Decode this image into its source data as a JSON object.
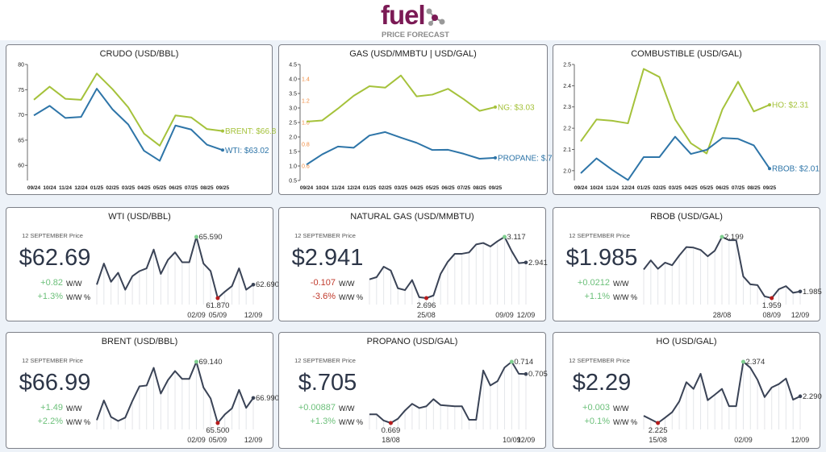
{
  "header": {
    "logo_text": "fuel",
    "subtitle": "PRICE FORECAST"
  },
  "colors": {
    "green": "#a5c23b",
    "blue": "#2e75a8",
    "orange": "#f08a3c",
    "spark": "#3a4356",
    "max_dot": "#7fcf8f",
    "min_dot": "#b71c1c",
    "positive": "#6cc07a",
    "negative": "#c0392b"
  },
  "chart_data": [
    {
      "type": "line",
      "title": "CRUDO (USD/BBL)",
      "grid": false,
      "categories": [
        "09/24",
        "10/24",
        "11/24",
        "12/24",
        "01/25",
        "02/25",
        "03/25",
        "04/25",
        "05/25",
        "06/25",
        "07/25",
        "08/25",
        "09/25"
      ],
      "ylim": [
        57,
        80
      ],
      "y_ticks": [
        60,
        65,
        70,
        75,
        80
      ],
      "tick_decimals": 0,
      "series": [
        {
          "name": "BRENT",
          "end_label": "BRENT: $66.8",
          "color": "#a5c23b",
          "values": [
            73.0,
            75.6,
            73.2,
            73.0,
            78.2,
            75.1,
            71.5,
            66.3,
            63.9,
            69.9,
            69.5,
            67.2,
            66.8
          ]
        },
        {
          "name": "WTI",
          "end_label": "WTI: $63.02",
          "color": "#2e75a8",
          "values": [
            69.9,
            71.8,
            69.4,
            69.6,
            75.2,
            71.1,
            68.1,
            62.9,
            60.9,
            67.9,
            67.1,
            64.1,
            63.02
          ]
        }
      ]
    },
    {
      "type": "line",
      "title": "GAS (USD/MMBTU | USD/GAL)",
      "grid": false,
      "categories": [
        "09/24",
        "10/24",
        "11/24",
        "12/24",
        "01/25",
        "02/25",
        "03/25",
        "04/25",
        "05/25",
        "06/25",
        "07/25",
        "08/25",
        "09/25"
      ],
      "ylim": [
        0.5,
        4.5
      ],
      "y_ticks": [
        0.5,
        1.0,
        1.5,
        2.0,
        2.5,
        3.0,
        3.5,
        4.0,
        4.5
      ],
      "tick_decimals": 1,
      "secondary_axis": {
        "ylim": [
          0.467,
          1.533
        ],
        "ticks": [
          0.6,
          0.8,
          1.0,
          1.2,
          1.4
        ],
        "color": "#f08a3c"
      },
      "series": [
        {
          "name": "NG",
          "end_label": "NG: $3.03",
          "color": "#a5c23b",
          "axis": "primary",
          "values": [
            2.53,
            2.57,
            2.98,
            3.42,
            3.75,
            3.7,
            4.12,
            3.4,
            3.46,
            3.66,
            3.3,
            2.9,
            3.03
          ]
        },
        {
          "name": "PROPANE",
          "end_label": "PROPANE: $.7",
          "color": "#2e75a8",
          "axis": "secondary",
          "values": [
            0.613,
            0.707,
            0.779,
            0.768,
            0.88,
            0.912,
            0.861,
            0.813,
            0.747,
            0.749,
            0.712,
            0.667,
            0.675
          ]
        }
      ]
    },
    {
      "type": "line",
      "title": "COMBUSTIBLE (USD/GAL)",
      "grid": false,
      "categories": [
        "09/24",
        "10/24",
        "11/24",
        "12/24",
        "01/25",
        "02/25",
        "03/25",
        "04/25",
        "05/25",
        "06/25",
        "07/25",
        "08/25",
        "09/25"
      ],
      "ylim": [
        1.954,
        2.5
      ],
      "y_ticks": [
        2.0,
        2.1,
        2.2,
        2.3,
        2.4,
        2.5
      ],
      "tick_decimals": 1,
      "series": [
        {
          "name": "HO",
          "end_label": "HO: $2.31",
          "color": "#a5c23b",
          "values": [
            2.138,
            2.241,
            2.235,
            2.223,
            2.479,
            2.441,
            2.241,
            2.129,
            2.081,
            2.288,
            2.419,
            2.279,
            2.31
          ]
        },
        {
          "name": "RBOB",
          "end_label": "RBOB: $2.01",
          "color": "#2e75a8",
          "values": [
            1.988,
            2.058,
            2.004,
            1.956,
            2.064,
            2.064,
            2.16,
            2.079,
            2.098,
            2.154,
            2.15,
            2.119,
            2.01
          ]
        }
      ]
    },
    {
      "type": "line",
      "title": "WTI (USD/BBL)",
      "price_label": "12 SEPTEMBER Price",
      "price": "$62.69",
      "change": "+0.82",
      "change_label": "W/W",
      "change_pct": "+1.3%",
      "change_pct_label": "W/W %",
      "trend": "up",
      "values": [
        62.69,
        63.97,
        62.86,
        63.41,
        62.38,
        63.2,
        63.51,
        63.68,
        64.82,
        63.34,
        64.19,
        64.65,
        64.05,
        64.05,
        65.59,
        63.97,
        63.51,
        61.87,
        62.26,
        62.6,
        63.68,
        62.38,
        62.69
      ],
      "x_labels": [
        {
          "index": 14,
          "label": "02/09"
        },
        {
          "index": 17,
          "label": "05/09"
        },
        {
          "index": 22,
          "label": "12/09"
        }
      ],
      "max_label": "65.590",
      "min_label": "61.870",
      "last_label": "62.690"
    },
    {
      "type": "line",
      "title": "NATURAL GAS (USD/MMBTU)",
      "price_label": "12 SEPTEMBER Price",
      "price": "$2.941",
      "change": "-0.107",
      "change_label": "W/W",
      "change_pct": "-3.6%",
      "change_pct_label": "W/W %",
      "trend": "down",
      "values": [
        2.825,
        2.84,
        2.912,
        2.886,
        2.764,
        2.751,
        2.82,
        2.702,
        2.696,
        2.714,
        2.862,
        2.945,
        3.001,
        3.001,
        3.01,
        3.065,
        3.075,
        3.051,
        3.087,
        3.117,
        3.019,
        2.936,
        2.941
      ],
      "x_labels": [
        {
          "index": 8,
          "label": "25/08"
        },
        {
          "index": 19,
          "label": "09/09"
        },
        {
          "index": 22,
          "label": "12/09"
        }
      ],
      "max_label": "3.117",
      "min_label": "2.696",
      "last_label": "2.941"
    },
    {
      "type": "line",
      "title": "RBOB (USD/GAL)",
      "price_label": "12 SEPTEMBER Price",
      "price": "$1.985",
      "change": "+0.0212",
      "change_label": "W/W",
      "change_pct": "+1.1%",
      "change_pct_label": "W/W %",
      "trend": "up",
      "values": [
        2.071,
        2.107,
        2.074,
        2.098,
        2.088,
        2.126,
        2.159,
        2.157,
        2.148,
        2.123,
        2.145,
        2.199,
        2.186,
        2.186,
        2.044,
        2.013,
        2.01,
        1.966,
        1.959,
        1.994,
        2.006,
        1.98,
        1.985
      ],
      "x_labels": [
        {
          "index": 11,
          "label": "28/08"
        },
        {
          "index": 18,
          "label": "08/09"
        },
        {
          "index": 22,
          "label": "12/09"
        }
      ],
      "max_label": "2.199",
      "min_label": "1.959",
      "last_label": "1.985"
    },
    {
      "type": "line",
      "title": "BRENT (USD/BBL)",
      "price_label": "12 SEPTEMBER Price",
      "price": "$66.99",
      "change": "+1.49",
      "change_label": "W/W",
      "change_pct": "+2.2%",
      "change_pct_label": "W/W %",
      "trend": "up",
      "values": [
        65.67,
        66.84,
        65.86,
        65.62,
        65.82,
        66.81,
        67.68,
        67.73,
        68.78,
        67.25,
        68.05,
        68.59,
        68.12,
        68.12,
        69.14,
        67.61,
        66.96,
        65.5,
        66.01,
        66.37,
        67.47,
        66.4,
        66.99
      ],
      "x_labels": [
        {
          "index": 14,
          "label": "02/09"
        },
        {
          "index": 17,
          "label": "05/09"
        },
        {
          "index": 22,
          "label": "12/09"
        }
      ],
      "max_label": "69.140",
      "min_label": "65.500",
      "last_label": "66.990"
    },
    {
      "type": "line",
      "title": "PROPANO (USD/GAL)",
      "price_label": "12 SEPTEMBER Price",
      "price": "$.705",
      "change": "+0.00887",
      "change_label": "W/W",
      "change_pct": "+1.3%",
      "change_pct_label": "W/W %",
      "trend": "up",
      "values": [
        0.6754,
        0.6754,
        0.6708,
        0.669,
        0.6721,
        0.6782,
        0.6831,
        0.68,
        0.6813,
        0.6865,
        0.6822,
        0.6817,
        0.6813,
        0.6813,
        0.6714,
        0.6714,
        0.7076,
        0.6966,
        0.6997,
        0.7098,
        0.714,
        0.7052,
        0.705
      ],
      "x_labels": [
        {
          "index": 3,
          "label": "18/08"
        },
        {
          "index": 20,
          "label": "10/09"
        },
        {
          "index": 22,
          "label": "12/09"
        }
      ],
      "max_label": "0.714",
      "min_label": "0.669",
      "last_label": "0.705"
    },
    {
      "type": "line",
      "title": "HO (USD/GAL)",
      "price_label": "12 SEPTEMBER Price",
      "price": "$2.29",
      "change": "+0.003",
      "change_label": "W/W",
      "change_pct": "+0.1%",
      "change_pct_label": "W/W %",
      "trend": "up",
      "values": [
        2.2425,
        2.2338,
        2.225,
        2.2379,
        2.2513,
        2.2776,
        2.3243,
        2.308,
        2.3448,
        2.2805,
        2.2939,
        2.308,
        2.2659,
        2.2659,
        2.374,
        2.3594,
        2.3302,
        2.2881,
        2.3115,
        2.3197,
        2.3331,
        2.2817,
        2.29
      ],
      "x_labels": [
        {
          "index": 2,
          "label": "15/08"
        },
        {
          "index": 14,
          "label": "02/09"
        },
        {
          "index": 22,
          "label": "12/09"
        }
      ],
      "max_label": "2.374",
      "min_label": "2.225",
      "last_label": "2.290"
    }
  ]
}
